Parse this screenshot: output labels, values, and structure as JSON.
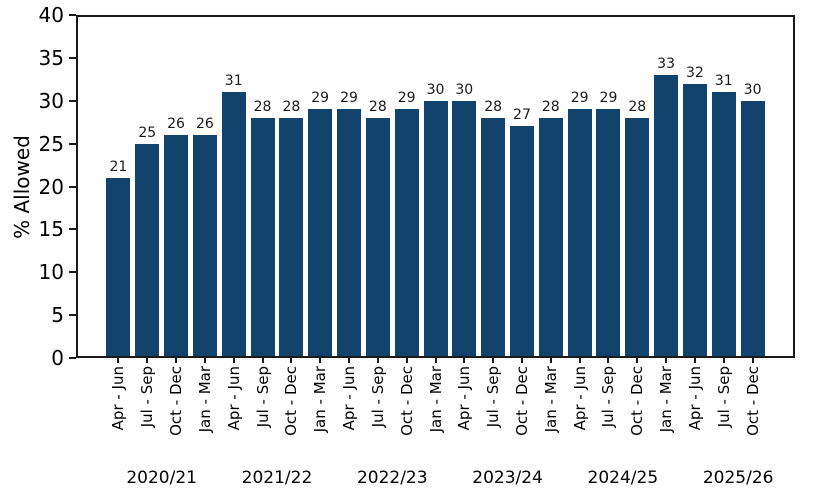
{
  "chart_data": {
    "type": "bar",
    "title": "",
    "xlabel": "",
    "ylabel": "% Allowed",
    "ylim": [
      0,
      40
    ],
    "yticks": [
      0,
      5,
      10,
      15,
      20,
      25,
      30,
      35,
      40
    ],
    "grid": false,
    "legend_position": "none",
    "bar_color": "#12436D",
    "categories": [
      "Apr - Jun",
      "Jul - Sep",
      "Oct - Dec",
      "Jan - Mar",
      "Apr - Jun",
      "Jul - Sep",
      "Oct - Dec",
      "Jan - Mar",
      "Apr - Jun",
      "Jul - Sep",
      "Oct - Dec",
      "Jan - Mar",
      "Apr - Jun",
      "Jul - Sep",
      "Oct - Dec",
      "Jan - Mar",
      "Apr - Jun",
      "Jul - Sep",
      "Oct - Dec",
      "Jan - Mar",
      "Apr - Jun",
      "Jul - Sep",
      "Oct - Dec"
    ],
    "values": [
      21,
      25,
      26,
      26,
      31,
      28,
      28,
      29,
      29,
      28,
      29,
      30,
      30,
      28,
      27,
      28,
      29,
      29,
      28,
      33,
      32,
      31,
      30
    ],
    "year_groups": [
      {
        "label": "2020/21",
        "start": 0
      },
      {
        "label": "2021/22",
        "start": 4
      },
      {
        "label": "2022/23",
        "start": 8
      },
      {
        "label": "2023/24",
        "start": 12
      },
      {
        "label": "2024/25",
        "start": 16
      },
      {
        "label": "2025/26",
        "start": 20
      }
    ]
  }
}
